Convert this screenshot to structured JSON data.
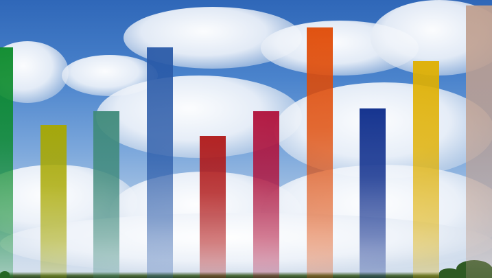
{
  "scene": {
    "description_colors": {
      "sky_top": "#2f67b8",
      "sky_bottom": "#d8e2ee",
      "ground": "#2f4a26"
    }
  },
  "bars": [
    {
      "level": 0.83,
      "color": "#0a8a2a"
    },
    {
      "level": 0.55,
      "color": "#a8a800"
    },
    {
      "level": 0.6,
      "color": "#3f8a7a"
    },
    {
      "level": 0.83,
      "color": "#2a5aa8"
    },
    {
      "level": 0.51,
      "color": "#b01818"
    },
    {
      "level": 0.6,
      "color": "#b0103a"
    },
    {
      "level": 0.9,
      "color": "#e04a05"
    },
    {
      "level": 0.61,
      "color": "#0a2a8a"
    },
    {
      "level": 0.78,
      "color": "#e0b000"
    },
    {
      "level": 0.98,
      "color": "#c0a090"
    }
  ]
}
